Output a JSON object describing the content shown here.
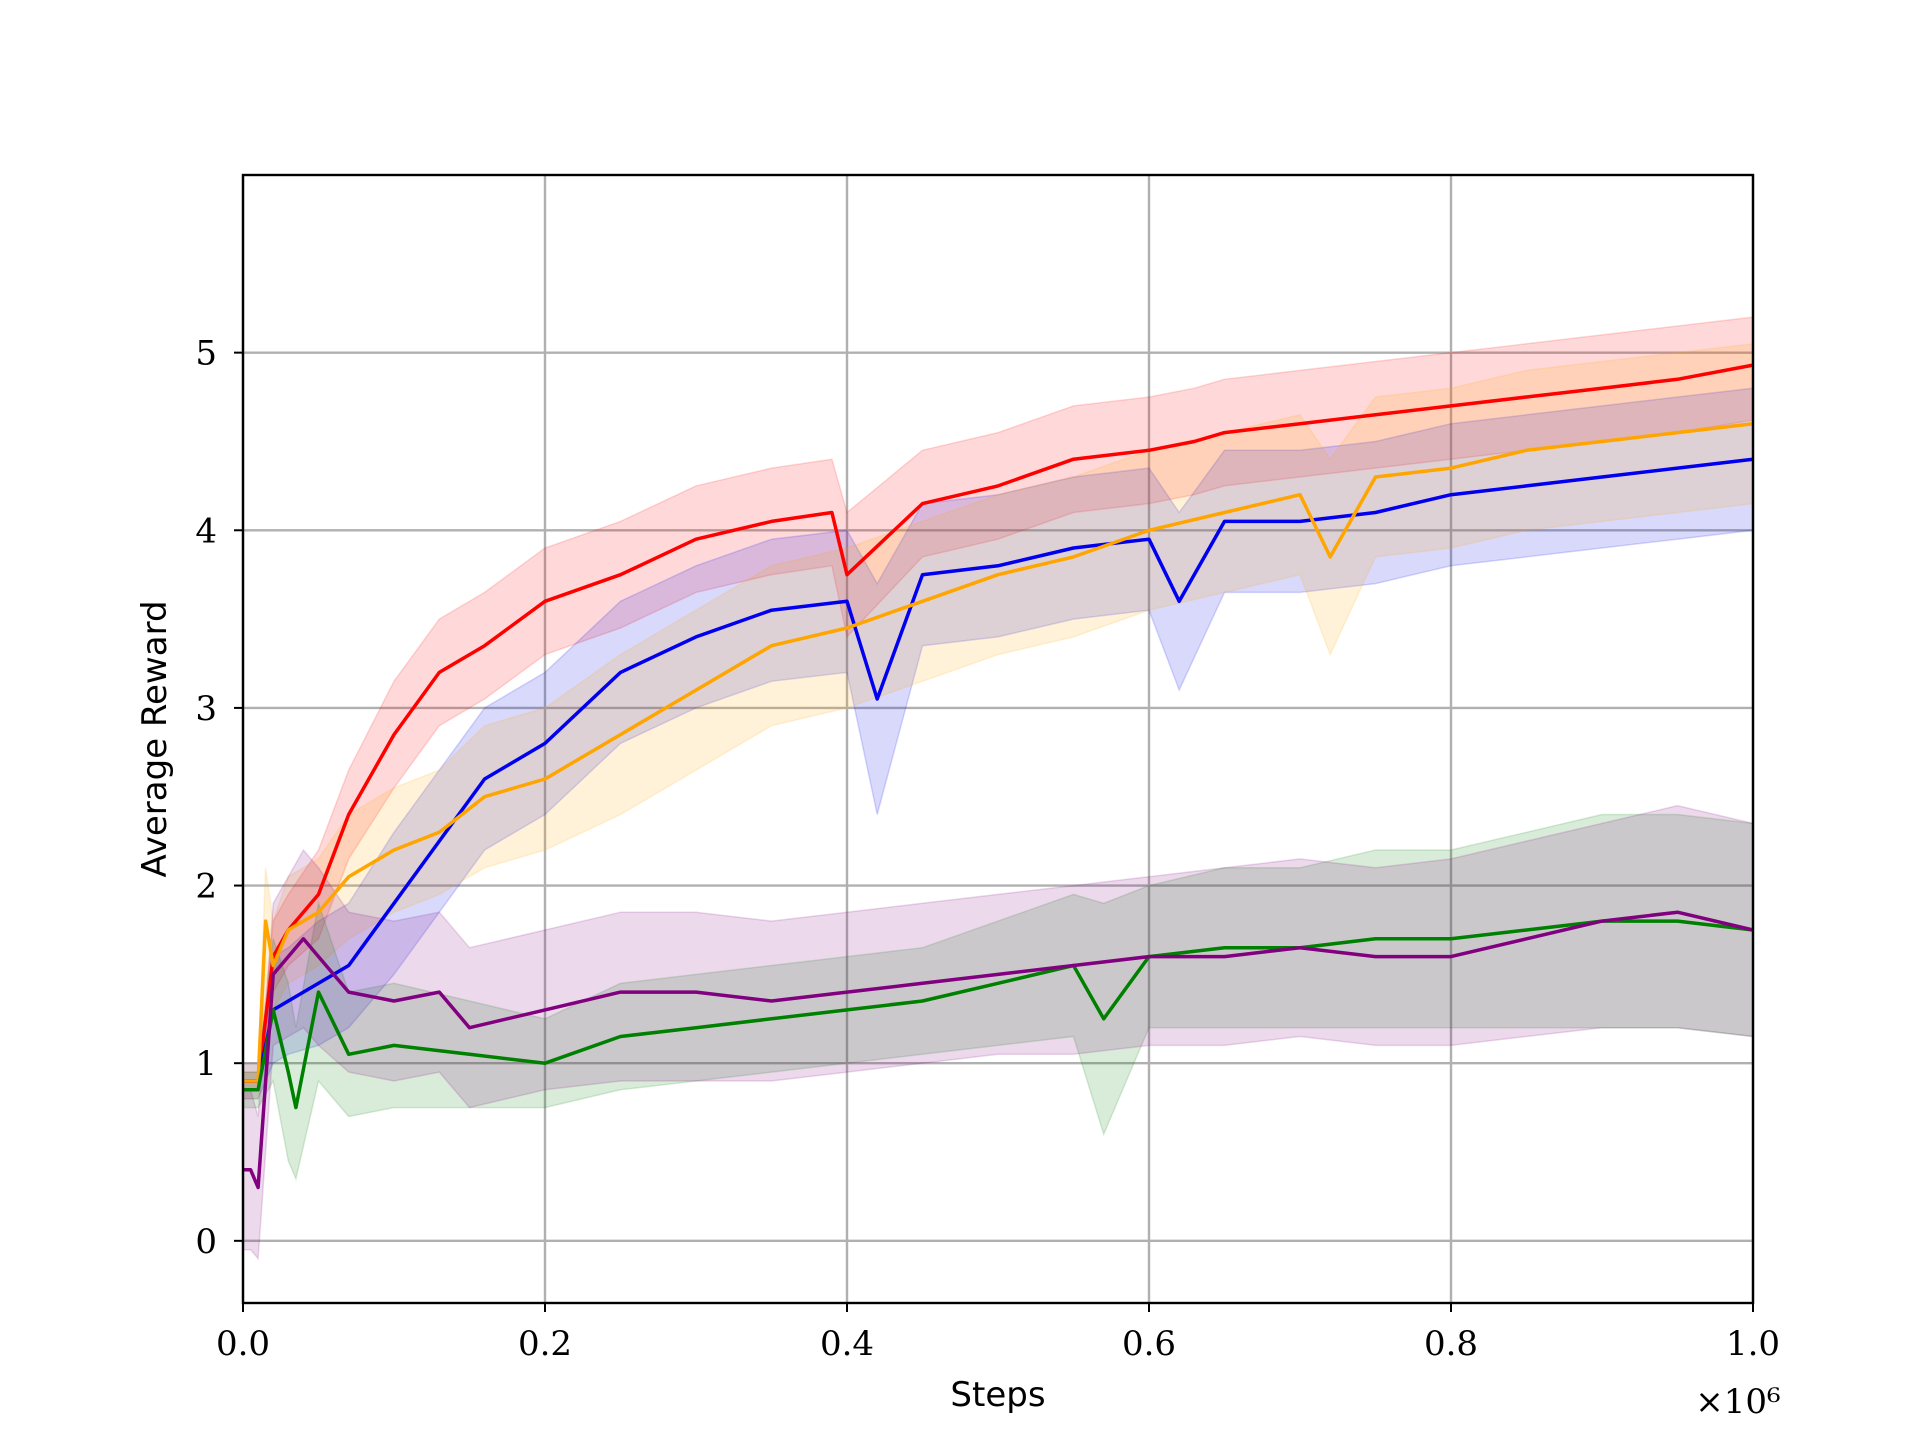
{
  "chart_data": {
    "type": "line",
    "title": "",
    "xlabel": "Steps",
    "ylabel": "Average Reward",
    "x_scale_label": "×10⁶",
    "x_multiplier": 1000000,
    "xlim": [
      0,
      1.0
    ],
    "ylim": [
      -0.35,
      6.0
    ],
    "x_ticks": [
      0.0,
      0.2,
      0.4,
      0.6,
      0.8,
      1.0
    ],
    "x_tick_labels": [
      "0.0",
      "0.2",
      "0.4",
      "0.6",
      "0.8",
      "1.0"
    ],
    "y_ticks": [
      0,
      1,
      2,
      3,
      4,
      5
    ],
    "y_tick_labels": [
      "0",
      "1",
      "2",
      "3",
      "4",
      "5"
    ],
    "grid": true,
    "legend": "none",
    "shaded_bands": true,
    "series": [
      {
        "color": "#ff0000",
        "x": [
          0.0,
          0.01,
          0.02,
          0.03,
          0.05,
          0.07,
          0.1,
          0.13,
          0.16,
          0.2,
          0.25,
          0.3,
          0.35,
          0.39,
          0.4,
          0.45,
          0.5,
          0.55,
          0.6,
          0.63,
          0.65,
          0.7,
          0.75,
          0.8,
          0.85,
          0.9,
          0.95,
          1.0
        ],
        "y": [
          0.9,
          0.9,
          1.6,
          1.75,
          1.95,
          2.4,
          2.85,
          3.2,
          3.35,
          3.6,
          3.75,
          3.95,
          4.05,
          4.1,
          3.75,
          4.15,
          4.25,
          4.4,
          4.45,
          4.5,
          4.55,
          4.6,
          4.65,
          4.7,
          4.75,
          4.8,
          4.85,
          4.93
        ],
        "band_lower": [
          0.85,
          0.85,
          1.4,
          1.55,
          1.7,
          2.15,
          2.55,
          2.9,
          3.05,
          3.3,
          3.45,
          3.65,
          3.75,
          3.8,
          3.4,
          3.85,
          3.95,
          4.1,
          4.15,
          4.2,
          4.25,
          4.3,
          4.35,
          4.4,
          4.45,
          4.5,
          4.55,
          4.62
        ],
        "band_upper": [
          0.95,
          0.95,
          1.8,
          1.95,
          2.2,
          2.65,
          3.15,
          3.5,
          3.65,
          3.9,
          4.05,
          4.25,
          4.35,
          4.4,
          4.1,
          4.45,
          4.55,
          4.7,
          4.75,
          4.8,
          4.85,
          4.9,
          4.95,
          5.0,
          5.05,
          5.1,
          5.15,
          5.2
        ]
      },
      {
        "color": "#0000ee",
        "x": [
          0.0,
          0.01,
          0.02,
          0.03,
          0.05,
          0.07,
          0.1,
          0.13,
          0.16,
          0.2,
          0.25,
          0.3,
          0.35,
          0.4,
          0.42,
          0.45,
          0.5,
          0.55,
          0.6,
          0.62,
          0.65,
          0.7,
          0.75,
          0.8,
          0.85,
          0.9,
          0.95,
          1.0
        ],
        "y": [
          0.9,
          0.9,
          1.3,
          1.35,
          1.45,
          1.55,
          1.9,
          2.25,
          2.6,
          2.8,
          3.2,
          3.4,
          3.55,
          3.6,
          3.05,
          3.75,
          3.8,
          3.9,
          3.95,
          3.6,
          4.05,
          4.05,
          4.1,
          4.2,
          4.25,
          4.3,
          4.35,
          4.4
        ],
        "band_lower": [
          0.8,
          0.8,
          1.0,
          1.05,
          1.1,
          1.2,
          1.5,
          1.85,
          2.2,
          2.4,
          2.8,
          3.0,
          3.15,
          3.2,
          2.4,
          3.35,
          3.4,
          3.5,
          3.55,
          3.1,
          3.65,
          3.65,
          3.7,
          3.8,
          3.85,
          3.9,
          3.95,
          4.0
        ],
        "band_upper": [
          1.0,
          1.0,
          1.6,
          1.65,
          1.8,
          1.9,
          2.3,
          2.65,
          3.0,
          3.2,
          3.6,
          3.8,
          3.95,
          4.0,
          3.7,
          4.15,
          4.2,
          4.3,
          4.35,
          4.1,
          4.45,
          4.45,
          4.5,
          4.6,
          4.65,
          4.7,
          4.75,
          4.8
        ]
      },
      {
        "color": "#ffa500",
        "x": [
          0.0,
          0.01,
          0.015,
          0.02,
          0.03,
          0.05,
          0.07,
          0.1,
          0.13,
          0.16,
          0.2,
          0.25,
          0.3,
          0.35,
          0.4,
          0.45,
          0.5,
          0.55,
          0.6,
          0.65,
          0.7,
          0.72,
          0.75,
          0.8,
          0.85,
          0.9,
          0.95,
          1.0
        ],
        "y": [
          0.9,
          0.9,
          1.8,
          1.55,
          1.75,
          1.85,
          2.05,
          2.2,
          2.3,
          2.5,
          2.6,
          2.85,
          3.1,
          3.35,
          3.45,
          3.6,
          3.75,
          3.85,
          4.0,
          4.1,
          4.2,
          3.85,
          4.3,
          4.35,
          4.45,
          4.5,
          4.55,
          4.6
        ],
        "band_lower": [
          0.8,
          0.8,
          1.5,
          1.3,
          1.45,
          1.55,
          1.7,
          1.85,
          1.95,
          2.1,
          2.2,
          2.4,
          2.65,
          2.9,
          3.0,
          3.15,
          3.3,
          3.4,
          3.55,
          3.65,
          3.75,
          3.3,
          3.85,
          3.9,
          4.0,
          4.05,
          4.1,
          4.15
        ],
        "band_upper": [
          1.0,
          1.0,
          2.1,
          1.8,
          2.05,
          2.15,
          2.4,
          2.55,
          2.65,
          2.9,
          3.0,
          3.3,
          3.55,
          3.8,
          3.9,
          4.05,
          4.2,
          4.3,
          4.45,
          4.55,
          4.65,
          4.4,
          4.75,
          4.8,
          4.9,
          4.95,
          5.0,
          5.05
        ]
      },
      {
        "color": "#008000",
        "x": [
          0.0,
          0.01,
          0.02,
          0.03,
          0.035,
          0.05,
          0.07,
          0.1,
          0.15,
          0.2,
          0.25,
          0.3,
          0.35,
          0.4,
          0.45,
          0.5,
          0.55,
          0.57,
          0.6,
          0.65,
          0.7,
          0.75,
          0.8,
          0.85,
          0.9,
          0.95,
          1.0
        ],
        "y": [
          0.85,
          0.85,
          1.3,
          0.95,
          0.75,
          1.4,
          1.05,
          1.1,
          1.05,
          1.0,
          1.15,
          1.2,
          1.25,
          1.3,
          1.35,
          1.45,
          1.55,
          1.25,
          1.6,
          1.65,
          1.65,
          1.7,
          1.7,
          1.75,
          1.8,
          1.8,
          1.75
        ],
        "band_lower": [
          0.75,
          0.75,
          0.9,
          0.45,
          0.35,
          0.9,
          0.7,
          0.75,
          0.75,
          0.75,
          0.85,
          0.9,
          0.95,
          1.0,
          1.05,
          1.1,
          1.15,
          0.6,
          1.2,
          1.2,
          1.2,
          1.2,
          1.2,
          1.2,
          1.2,
          1.2,
          1.15
        ],
        "band_upper": [
          0.95,
          0.95,
          1.7,
          1.45,
          1.2,
          1.9,
          1.4,
          1.45,
          1.35,
          1.25,
          1.45,
          1.5,
          1.55,
          1.6,
          1.65,
          1.8,
          1.95,
          1.9,
          2.0,
          2.1,
          2.1,
          2.2,
          2.2,
          2.3,
          2.4,
          2.4,
          2.35
        ]
      },
      {
        "color": "#800080",
        "x": [
          0.0,
          0.005,
          0.01,
          0.02,
          0.03,
          0.04,
          0.05,
          0.07,
          0.1,
          0.13,
          0.15,
          0.2,
          0.25,
          0.3,
          0.35,
          0.4,
          0.45,
          0.5,
          0.55,
          0.6,
          0.65,
          0.7,
          0.75,
          0.8,
          0.85,
          0.9,
          0.95,
          1.0
        ],
        "y": [
          0.4,
          0.4,
          0.3,
          1.5,
          1.6,
          1.7,
          1.6,
          1.4,
          1.35,
          1.4,
          1.2,
          1.3,
          1.4,
          1.4,
          1.35,
          1.4,
          1.45,
          1.5,
          1.55,
          1.6,
          1.6,
          1.65,
          1.6,
          1.6,
          1.7,
          1.8,
          1.85,
          1.75
        ],
        "band_lower": [
          -0.05,
          -0.05,
          -0.1,
          1.1,
          1.15,
          1.2,
          1.1,
          0.95,
          0.9,
          0.95,
          0.75,
          0.85,
          0.9,
          0.9,
          0.9,
          0.95,
          1.0,
          1.05,
          1.05,
          1.1,
          1.1,
          1.15,
          1.1,
          1.1,
          1.15,
          1.2,
          1.2,
          1.15
        ],
        "band_upper": [
          0.85,
          0.85,
          0.7,
          1.9,
          2.05,
          2.2,
          2.1,
          1.85,
          1.8,
          1.85,
          1.65,
          1.75,
          1.85,
          1.85,
          1.8,
          1.85,
          1.9,
          1.95,
          2.0,
          2.05,
          2.1,
          2.15,
          2.1,
          2.15,
          2.25,
          2.35,
          2.45,
          2.35
        ]
      }
    ]
  }
}
